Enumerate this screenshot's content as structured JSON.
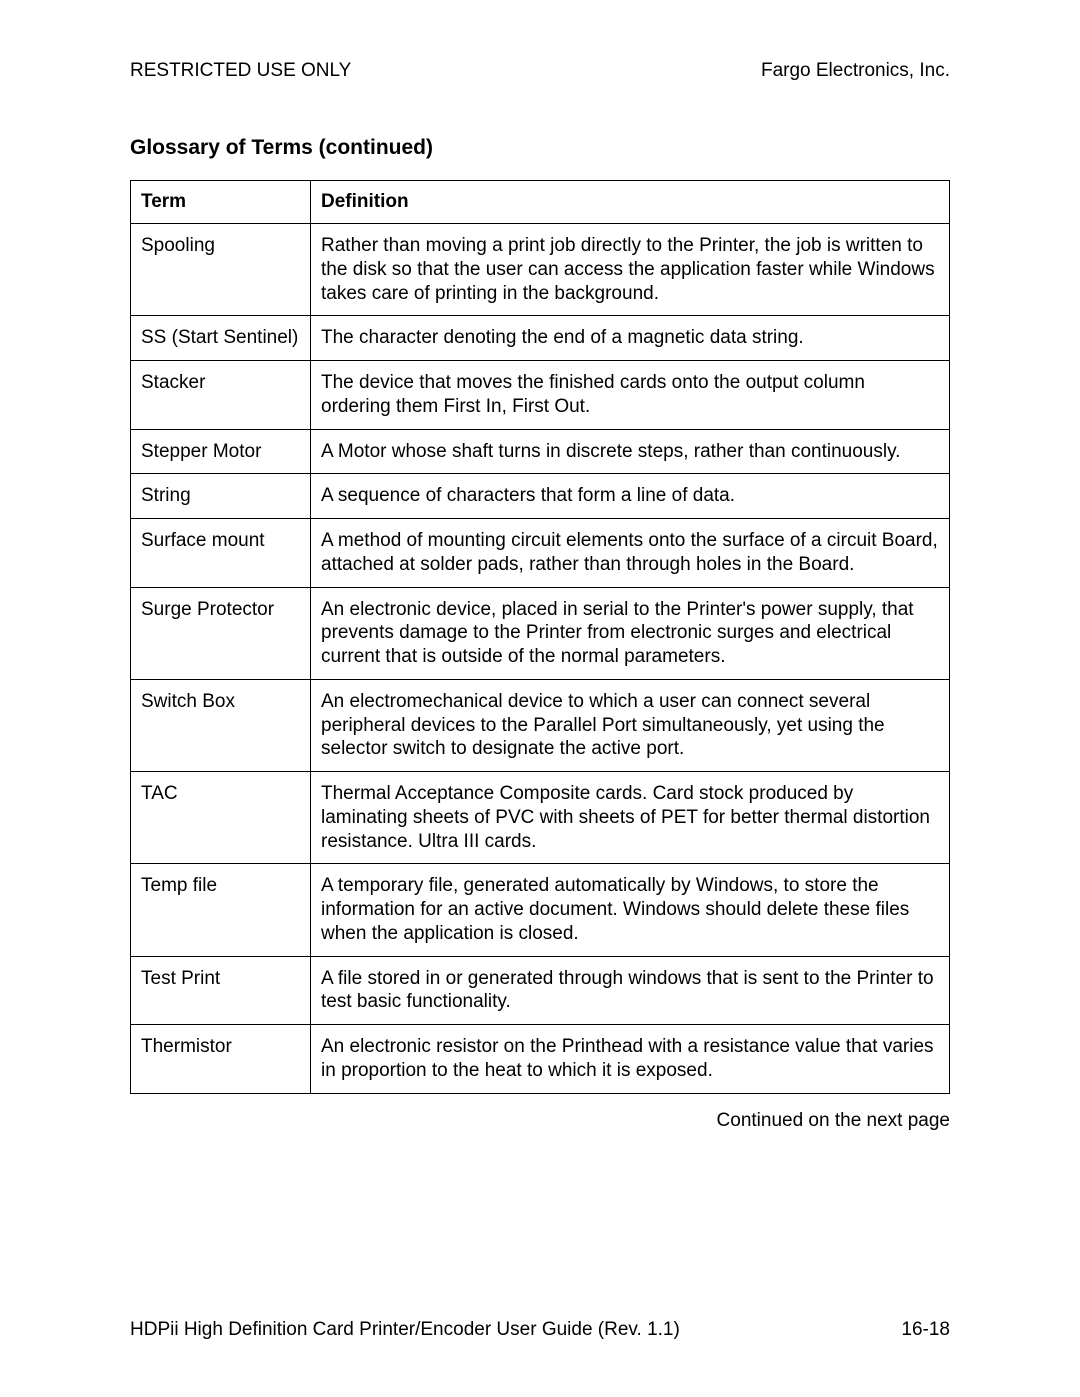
{
  "header": {
    "left": "RESTRICTED USE ONLY",
    "right": "Fargo Electronics, Inc."
  },
  "section_title": "Glossary of Terms (continued)",
  "table": {
    "headers": {
      "term": "Term",
      "definition": "Definition"
    },
    "rows": [
      {
        "term": "Spooling",
        "definition": "Rather than moving a print job directly to the Printer, the job is written to the disk so that the user can access the application faster while Windows takes care of printing in the background."
      },
      {
        "term": "SS (Start Sentinel)",
        "definition": "The character denoting the end of a magnetic data string."
      },
      {
        "term": "Stacker",
        "definition": "The device that moves the finished cards onto the output column ordering them First In, First Out."
      },
      {
        "term": "Stepper Motor",
        "definition": "A Motor whose shaft turns in discrete steps, rather than continuously."
      },
      {
        "term": "String",
        "definition": "A sequence of characters that form a line of data."
      },
      {
        "term": "Surface mount",
        "definition": "A method of mounting circuit elements onto the surface of a circuit Board, attached at solder pads, rather than through holes in the Board."
      },
      {
        "term": "Surge Protector",
        "definition": "An electronic device, placed in serial to the Printer's power supply, that prevents damage to the Printer from electronic surges and electrical current that is outside of the normal parameters."
      },
      {
        "term": "Switch Box",
        "definition": "An electromechanical device to which a user can connect several peripheral devices to the Parallel Port simultaneously, yet using the selector switch to designate the active port."
      },
      {
        "term": "TAC",
        "definition": "Thermal Acceptance Composite cards. Card stock produced by laminating sheets of PVC with sheets of PET for better thermal distortion resistance. Ultra III cards."
      },
      {
        "term": "Temp file",
        "definition": "A temporary file, generated automatically by Windows, to store the information for an active document. Windows should delete these files when the application is closed."
      },
      {
        "term": "Test Print",
        "definition": "A file stored in or generated through windows that is sent to the Printer to test basic functionality."
      },
      {
        "term": "Thermistor",
        "definition": "An electronic resistor on the Printhead with a resistance value that varies in proportion to the heat to which it is exposed."
      }
    ]
  },
  "continued_text": "Continued on the next page",
  "footer": {
    "left": "HDPii High Definition Card Printer/Encoder User Guide (Rev. 1.1)",
    "right": "16-18"
  }
}
